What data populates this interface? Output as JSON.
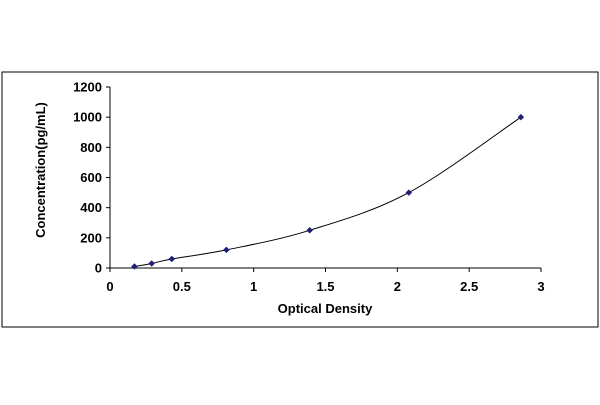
{
  "chart_data": {
    "type": "scatter",
    "xlabel": "Optical Density",
    "ylabel": "Concentration(pg/mL)",
    "xlim": [
      0,
      3
    ],
    "ylim": [
      0,
      1200
    ],
    "x_ticks": [
      "0",
      "0.5",
      "1",
      "1.5",
      "2",
      "2.5",
      "3"
    ],
    "y_ticks": [
      "0",
      "200",
      "400",
      "600",
      "800",
      "1000",
      "1200"
    ],
    "grid": false,
    "legend": "none",
    "series": [
      {
        "x": [
          0.17,
          0.29,
          0.43,
          0.81,
          1.39,
          2.08,
          2.86
        ],
        "y": [
          10,
          30,
          60,
          120,
          250,
          500,
          1000
        ],
        "marker": "diamond",
        "line": "smooth",
        "color": "#1f1f7a"
      }
    ]
  }
}
